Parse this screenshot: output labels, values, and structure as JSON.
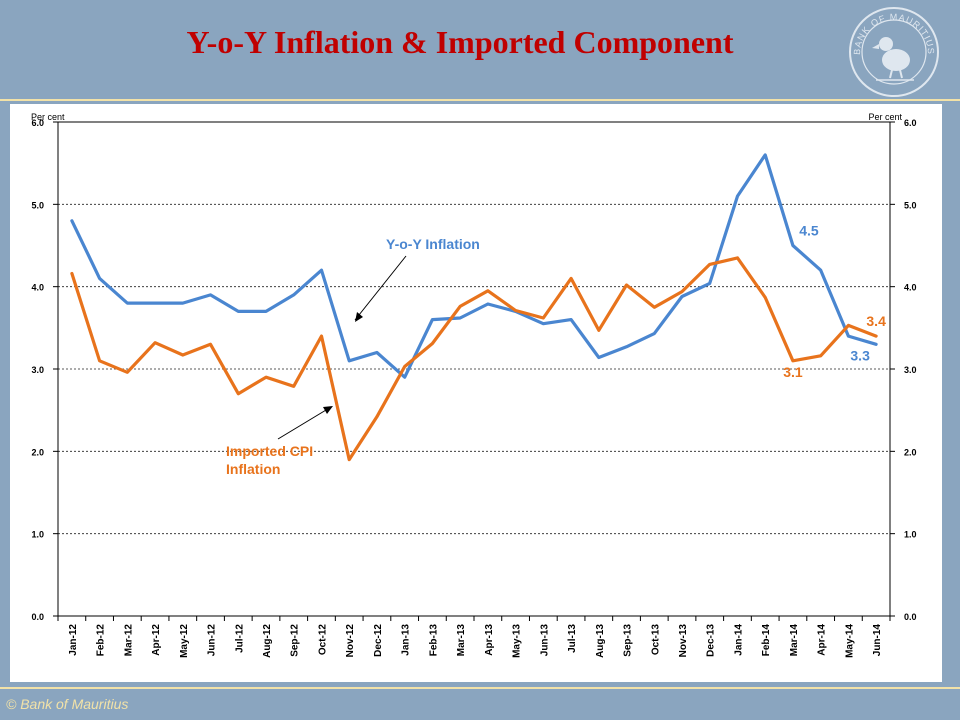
{
  "header": {
    "title": "Y-o-Y Inflation & Imported  Component",
    "seal_text": "BANK OF MAURITIUS"
  },
  "footer": {
    "copyright": "© Bank of Mauritius"
  },
  "colors": {
    "background": "#8aa5bf",
    "accent_rule": "#f2e2a8",
    "title": "#c00000",
    "yoy_series": "#4a86d0",
    "imported_series": "#e8731c"
  },
  "chart_data": {
    "type": "line",
    "y_axis_title_left": "Per cent",
    "y_axis_title_right": "Per cent",
    "ylim": [
      0,
      6
    ],
    "yticks": [
      "0.0",
      "1.0",
      "2.0",
      "3.0",
      "4.0",
      "5.0",
      "6.0"
    ],
    "grid": "horizontal dashed",
    "categories": [
      "Jan-12",
      "Feb-12",
      "Mar-12",
      "Apr-12",
      "May-12",
      "Jun-12",
      "Jul-12",
      "Aug-12",
      "Sep-12",
      "Oct-12",
      "Nov-12",
      "Dec-12",
      "Jan-13",
      "Feb-13",
      "Mar-13",
      "Apr-13",
      "May-13",
      "Jun-13",
      "Jul-13",
      "Aug-13",
      "Sep-13",
      "Oct-13",
      "Nov-13",
      "Dec-13",
      "Jan-14",
      "Feb-14",
      "Mar-14",
      "Apr-14",
      "May-14",
      "Jun-14"
    ],
    "series": [
      {
        "name": "Y-o-Y Inflation",
        "color": "#4a86d0",
        "values": [
          4.8,
          4.1,
          3.8,
          3.8,
          3.8,
          3.9,
          3.7,
          3.7,
          3.9,
          4.2,
          3.1,
          3.2,
          2.9,
          3.6,
          3.62,
          3.79,
          3.7,
          3.55,
          3.6,
          3.14,
          3.27,
          3.43,
          3.88,
          4.04,
          5.1,
          5.6,
          4.5,
          4.2,
          3.4,
          3.3
        ]
      },
      {
        "name": "Imported CPI Inflation",
        "color": "#e8731c",
        "values": [
          4.16,
          3.1,
          2.96,
          3.32,
          3.17,
          3.3,
          2.7,
          2.9,
          2.79,
          3.4,
          1.9,
          2.42,
          3.03,
          3.31,
          3.76,
          3.95,
          3.71,
          3.62,
          4.1,
          3.47,
          4.02,
          3.75,
          3.94,
          4.27,
          4.35,
          3.87,
          3.1,
          3.16,
          3.53,
          3.4
        ]
      }
    ],
    "annotations": [
      {
        "text": "Y-o-Y Inflation",
        "color": "#4a86d0"
      },
      {
        "text": "Imported CPI",
        "color": "#e8731c"
      },
      {
        "text": "Inflation",
        "color": "#e8731c"
      }
    ],
    "data_labels": [
      {
        "series": 0,
        "index": 26,
        "text": "4.5"
      },
      {
        "series": 0,
        "index": 29,
        "text": "3.3"
      },
      {
        "series": 1,
        "index": 26,
        "text": "3.1"
      },
      {
        "series": 1,
        "index": 29,
        "text": "3.4"
      }
    ]
  }
}
